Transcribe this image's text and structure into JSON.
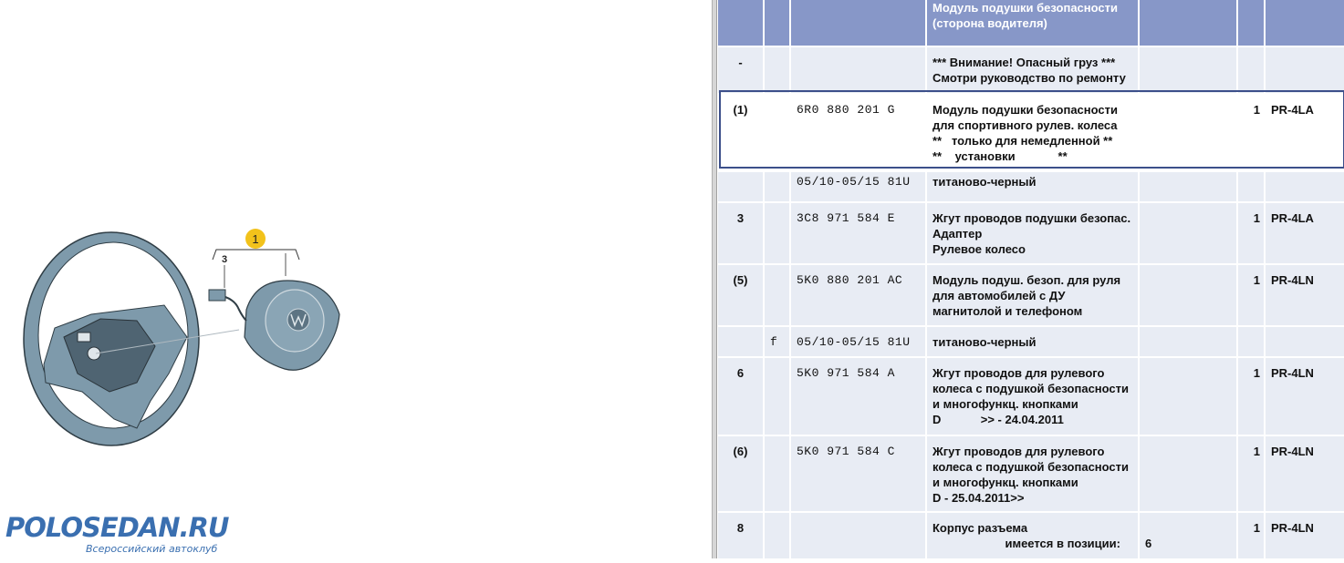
{
  "logo": {
    "title": "POLOSEDAN.RU",
    "subtitle": "Всероссийский автоклуб"
  },
  "diagram": {
    "callout_main": "1",
    "callout_sub": "3",
    "callout_color": "#f2c21b"
  },
  "colors": {
    "header": "#8797c8",
    "row": "#e8ecf4",
    "selection_border": "#3c4f8a",
    "logo": "#3a6fb0"
  },
  "table": {
    "header": {
      "desc": [
        "Модуль подушки безопасности",
        "(сторона водителя)"
      ]
    },
    "rows": [
      {
        "pos": "-",
        "mark": "",
        "part": "",
        "desc": [
          "*** Внимание! Опасный груз ***",
          "Смотри руководство по ремонту"
        ],
        "note": "",
        "qty": "",
        "code": "",
        "h": 50
      },
      {
        "pos": "(1)",
        "mark": "",
        "part": "6R0 880 201 G",
        "desc": [
          "Модуль подушки безопасности",
          "для спортивного рулев. колеса",
          "**   только для немедленной **",
          "**    установки             **"
        ],
        "note": "",
        "qty": "1",
        "code": "PR-4LA",
        "h": 83,
        "selected": true
      },
      {
        "pos": "",
        "mark": "",
        "part": "05/10-05/15 81U",
        "desc": [
          "титаново-черный"
        ],
        "note": "",
        "qty": "",
        "code": "",
        "h": 32,
        "tight": true
      },
      {
        "pos": "3",
        "mark": "",
        "part": "3C8 971 584 E",
        "desc": [
          "Жгут проводов подушки безопас.",
          "Адаптер",
          "Рулевое колесо"
        ],
        "note": "",
        "qty": "1",
        "code": "PR-4LA",
        "h": 66
      },
      {
        "pos": "(5)",
        "mark": "",
        "part": "5K0 880 201 AC",
        "desc": [
          "Модуль подуш. безоп. для руля",
          "для автомобилей с ДУ",
          "магнитолой и телефоном"
        ],
        "note": "",
        "qty": "1",
        "code": "PR-4LN",
        "h": 66
      },
      {
        "pos": "",
        "mark": "f",
        "part": "05/10-05/15 81U",
        "desc": [
          "титаново-черный"
        ],
        "note": "",
        "qty": "",
        "code": "",
        "h": 32
      },
      {
        "pos": "6",
        "mark": "",
        "part": "5K0 971 584 A",
        "desc": [
          "Жгут проводов для рулевого",
          "колеса с подушкой безопасности",
          "и многофункц. кнопками",
          "D            >> - 24.04.2011"
        ],
        "note": "",
        "qty": "1",
        "code": "PR-4LN",
        "h": 84
      },
      {
        "pos": "(6)",
        "mark": "",
        "part": "5K0 971 584 C",
        "desc": [
          "Жгут проводов для рулевого",
          "колеса с подушкой безопасности",
          "и многофункц. кнопками",
          "D - 25.04.2011>>"
        ],
        "note": "",
        "qty": "1",
        "code": "PR-4LN",
        "h": 82
      },
      {
        "pos": "8",
        "mark": "",
        "part": "",
        "desc": [
          "Корпус разъема",
          "                      имеется в позиции:"
        ],
        "note": "6",
        "qty": "1",
        "code": "PR-4LN",
        "h": 50
      }
    ]
  }
}
